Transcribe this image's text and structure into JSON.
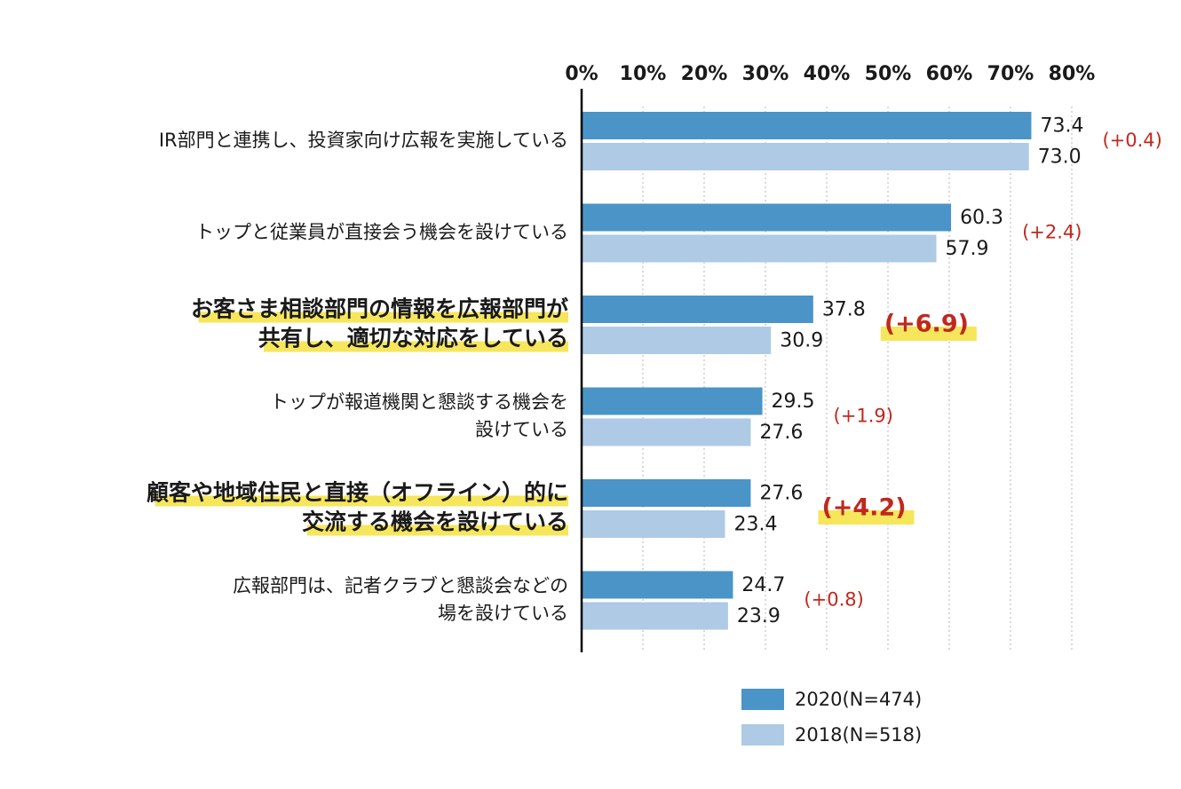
{
  "chart_data": {
    "type": "bar",
    "orientation": "horizontal",
    "categories": [
      [
        "IR部門と連携し、投資家向け広報を実施している"
      ],
      [
        "トップと従業員が直接会う機会を設けている"
      ],
      [
        "お客さま相談部門の情報を広報部門が",
        "共有し、適切な対応をしている"
      ],
      [
        "トップが報道機関と懇談する機会を",
        "設けている"
      ],
      [
        "顧客や地域住民と直接（オフライン）的に",
        "交流する機会を設けている"
      ],
      [
        "広報部門は、記者クラブと懇談会などの",
        "場を設けている"
      ]
    ],
    "highlighted": [
      false,
      false,
      true,
      false,
      true,
      false
    ],
    "series": [
      {
        "name": "2020(N=474)",
        "values": [
          73.4,
          60.3,
          37.8,
          29.5,
          27.6,
          24.7
        ],
        "value_labels": [
          "73.4",
          "60.3",
          "37.8",
          "29.5",
          "27.6",
          "24.7"
        ],
        "color": "#4a94c8"
      },
      {
        "name": "2018(N=518)",
        "values": [
          73.0,
          57.9,
          30.9,
          27.6,
          23.4,
          23.9
        ],
        "value_labels": [
          "73.0",
          "57.9",
          "30.9",
          "27.6",
          "23.4",
          "23.9"
        ],
        "color": "#aecae4"
      }
    ],
    "differences": [
      "(+0.4)",
      "(+2.4)",
      "(+6.9)",
      "(+1.9)",
      "(+4.2)",
      "(+0.8)"
    ],
    "difference_color": "#c0281e",
    "highlight_color": "#f6e65b",
    "x_ticks": [
      "0%",
      "10%",
      "20%",
      "30%",
      "40%",
      "50%",
      "60%",
      "70%",
      "80%"
    ],
    "xlim": [
      0,
      80
    ],
    "axis_position": "top",
    "grid": true,
    "legend_placement": "bottom"
  }
}
